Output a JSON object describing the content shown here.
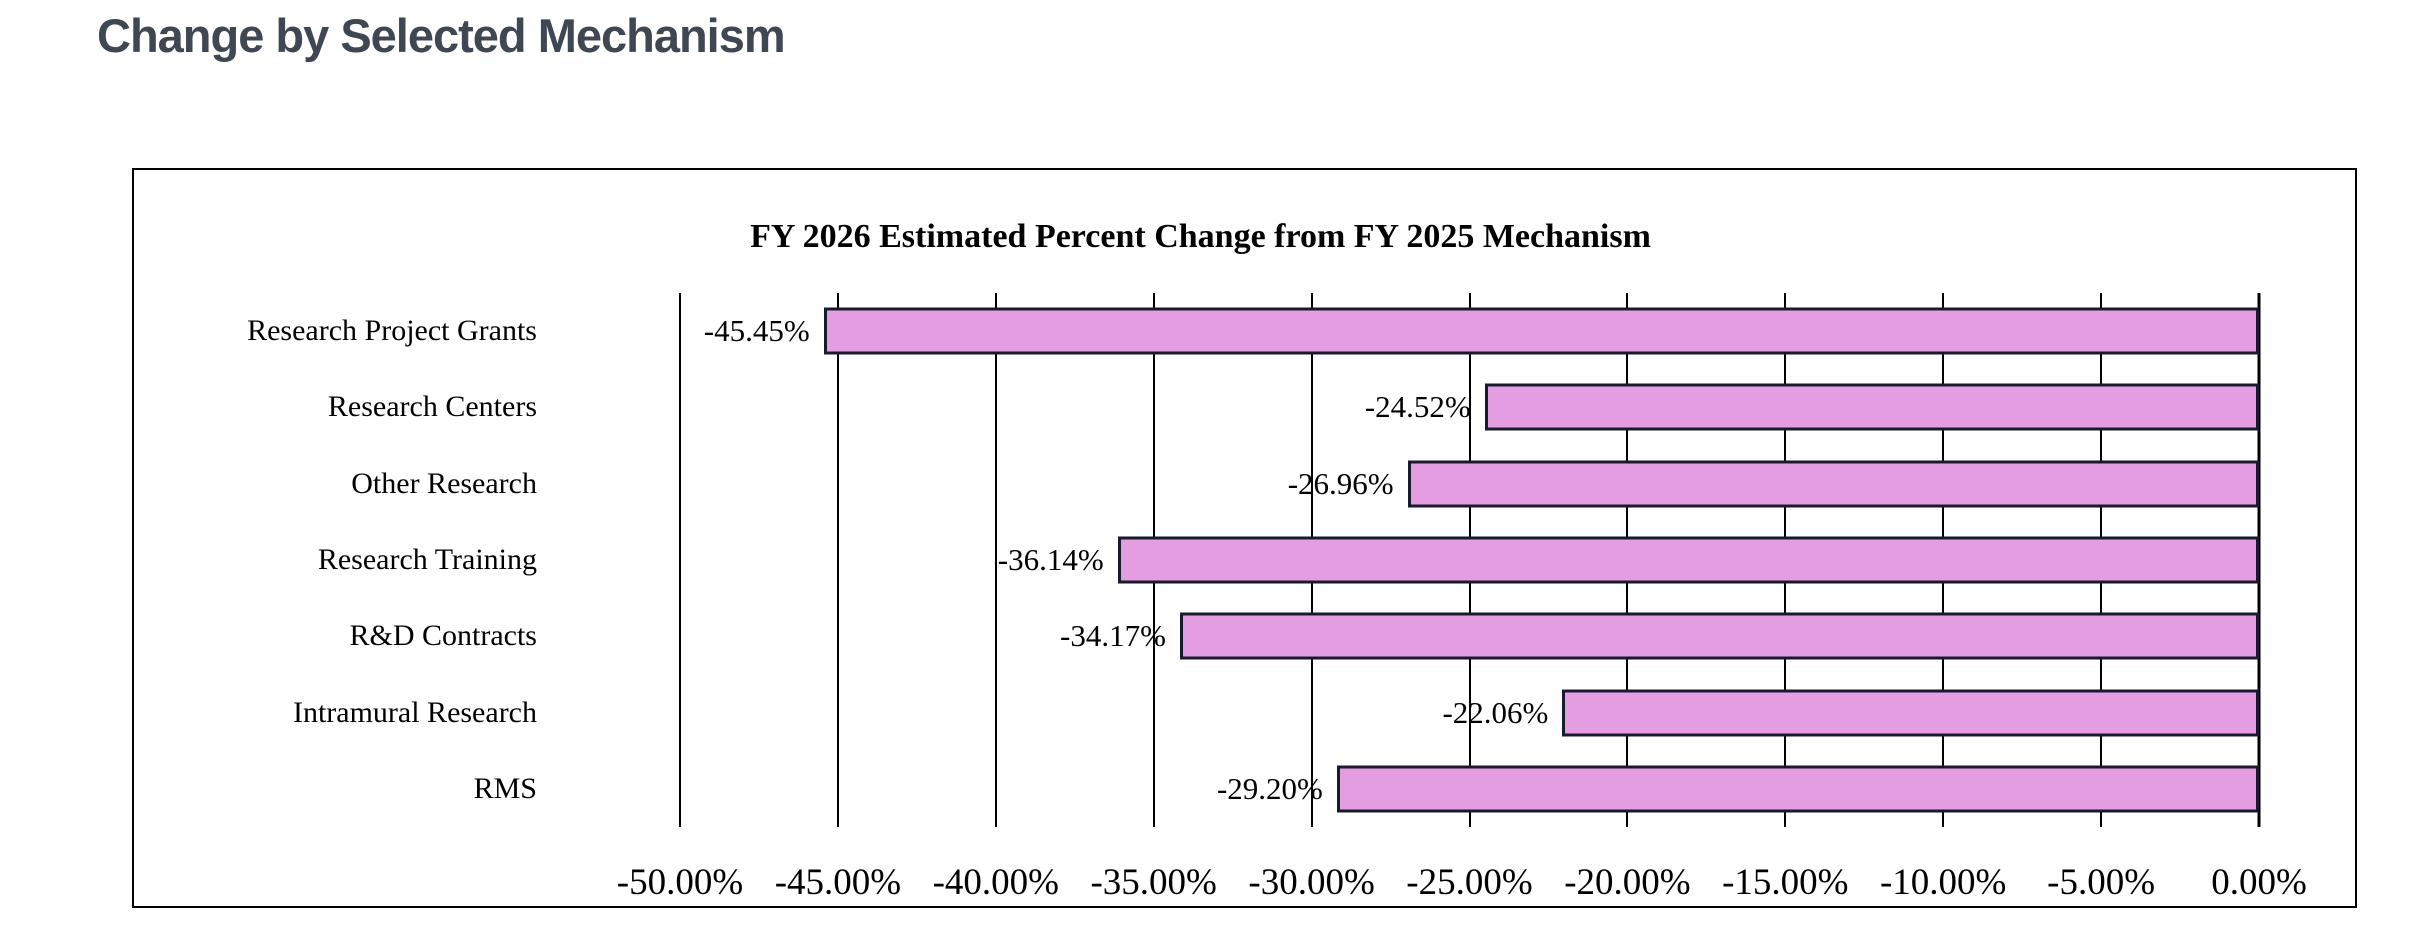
{
  "page": {
    "title": "Change by Selected Mechanism"
  },
  "colors": {
    "page_title": "#3f4753",
    "bar_fill": "#e49de0",
    "bar_border": "#1a1a2e",
    "gridline": "#000000",
    "card_border": "#000000",
    "card_bg": "#ffffff"
  },
  "chart_data": {
    "type": "bar",
    "orientation": "horizontal",
    "title": "FY 2026 Estimated Percent Change from FY 2025 Mechanism",
    "categories": [
      "Research Project Grants",
      "Research Centers",
      "Other Research",
      "Research Training",
      "R&D Contracts",
      "Intramural Research",
      "RMS"
    ],
    "values": [
      -45.45,
      -24.52,
      -26.96,
      -36.14,
      -34.17,
      -22.06,
      -29.2
    ],
    "value_labels": [
      "-45.45%",
      "-24.52%",
      "-26.96%",
      "-36.14%",
      "-34.17%",
      "-22.06%",
      "-29.20%"
    ],
    "xlabel": "",
    "ylabel": "",
    "xlim": [
      -50,
      0
    ],
    "x_ticks": [
      "-50.00%",
      "-45.00%",
      "-40.00%",
      "-35.00%",
      "-30.00%",
      "-25.00%",
      "-20.00%",
      "-15.00%",
      "-10.00%",
      "-5.00%",
      "0.00%"
    ],
    "grid": "vertical",
    "legend_position": "none",
    "bars_anchor": "right"
  }
}
